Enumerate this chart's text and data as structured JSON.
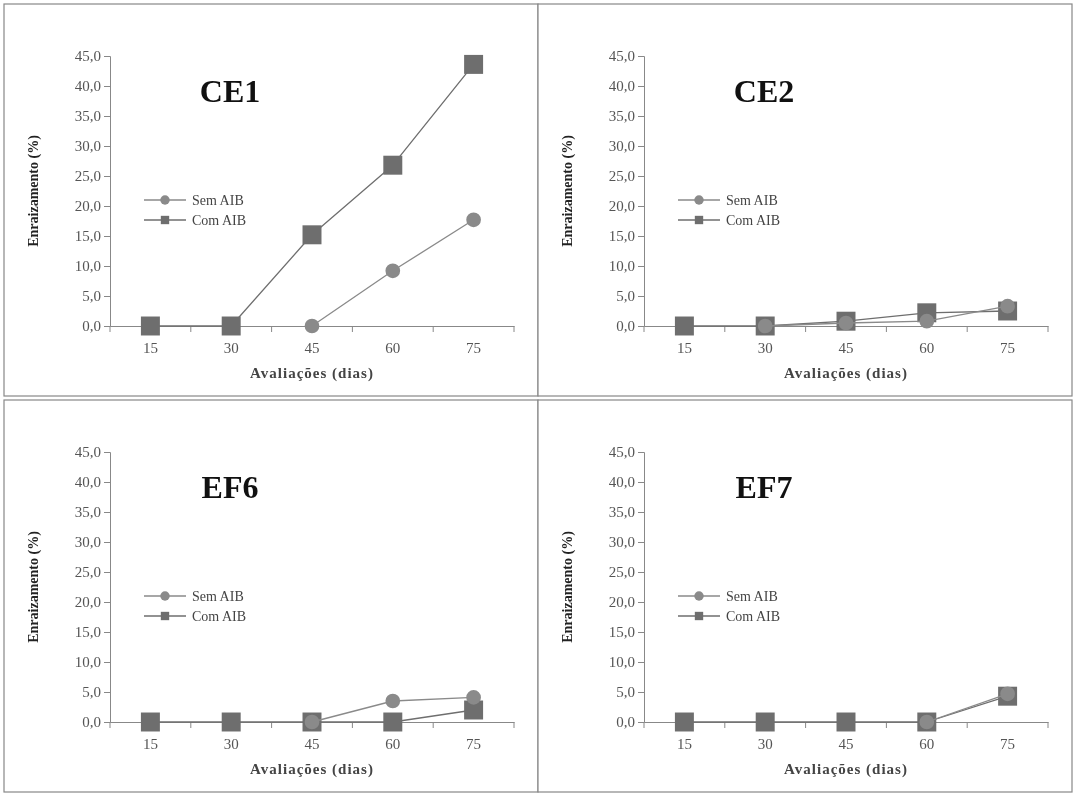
{
  "chart_data": [
    {
      "type": "line",
      "title": "CE1",
      "xlabel": "Avaliações (dias)",
      "ylabel": "Enraizamento (%)",
      "categories": [
        "15",
        "30",
        "45",
        "60",
        "75"
      ],
      "ylim": [
        0,
        45
      ],
      "yticks": [
        {
          "value": 0,
          "label": "0,0"
        },
        {
          "value": 5,
          "label": "5,0"
        },
        {
          "value": 10,
          "label": "10,0"
        },
        {
          "value": 15,
          "label": "15,0"
        },
        {
          "value": 20,
          "label": "20,0"
        },
        {
          "value": 25,
          "label": "25,0"
        },
        {
          "value": 30,
          "label": "30,0"
        },
        {
          "value": 35,
          "label": "35,0"
        },
        {
          "value": 40,
          "label": "40,0"
        },
        {
          "value": 45,
          "label": "45,0"
        }
      ],
      "legend": "left",
      "grid": false,
      "series": [
        {
          "name": "Sem AIB",
          "color": "#8a8a8a",
          "marker": "circle",
          "values": [
            null,
            null,
            0,
            9.2,
            17.7
          ]
        },
        {
          "name": "Com AIB",
          "color": "#6e6e6e",
          "marker": "square",
          "values": [
            0,
            0,
            15.2,
            26.8,
            43.6
          ]
        }
      ]
    },
    {
      "type": "line",
      "title": "CE2",
      "xlabel": "Avaliações (dias)",
      "ylabel": "Enraizamento (%)",
      "categories": [
        "15",
        "30",
        "45",
        "60",
        "75"
      ],
      "ylim": [
        0,
        45
      ],
      "yticks": [
        {
          "value": 0,
          "label": "0,0"
        },
        {
          "value": 5,
          "label": "5,0"
        },
        {
          "value": 10,
          "label": "10,0"
        },
        {
          "value": 15,
          "label": "15,0"
        },
        {
          "value": 20,
          "label": "20,0"
        },
        {
          "value": 25,
          "label": "25,0"
        },
        {
          "value": 30,
          "label": "30,0"
        },
        {
          "value": 35,
          "label": "35,0"
        },
        {
          "value": 40,
          "label": "40,0"
        },
        {
          "value": 45,
          "label": "45,0"
        }
      ],
      "legend": "left",
      "grid": false,
      "series": [
        {
          "name": "Sem AIB",
          "color": "#8a8a8a",
          "marker": "circle",
          "values": [
            null,
            0,
            0.5,
            0.8,
            3.3
          ]
        },
        {
          "name": "Com AIB",
          "color": "#6e6e6e",
          "marker": "square",
          "values": [
            0,
            0,
            0.8,
            2.2,
            2.5
          ]
        }
      ]
    },
    {
      "type": "line",
      "title": "EF6",
      "xlabel": "Avaliações (dias)",
      "ylabel": "Enraizamento (%)",
      "categories": [
        "15",
        "30",
        "45",
        "60",
        "75"
      ],
      "ylim": [
        0,
        45
      ],
      "yticks": [
        {
          "value": 0,
          "label": "0,0"
        },
        {
          "value": 5,
          "label": "5,0"
        },
        {
          "value": 10,
          "label": "10,0"
        },
        {
          "value": 15,
          "label": "15,0"
        },
        {
          "value": 20,
          "label": "20,0"
        },
        {
          "value": 25,
          "label": "25,0"
        },
        {
          "value": 30,
          "label": "30,0"
        },
        {
          "value": 35,
          "label": "35,0"
        },
        {
          "value": 40,
          "label": "40,0"
        },
        {
          "value": 45,
          "label": "45,0"
        }
      ],
      "legend": "left",
      "grid": false,
      "series": [
        {
          "name": "Sem AIB",
          "color": "#8a8a8a",
          "marker": "circle",
          "values": [
            null,
            null,
            0,
            3.5,
            4.1
          ]
        },
        {
          "name": "Com AIB",
          "color": "#6e6e6e",
          "marker": "square",
          "values": [
            0,
            0,
            0,
            0,
            2.0
          ]
        }
      ]
    },
    {
      "type": "line",
      "title": "EF7",
      "xlabel": "Avaliações (dias)",
      "ylabel": "Enraizamento (%)",
      "categories": [
        "15",
        "30",
        "45",
        "60",
        "75"
      ],
      "ylim": [
        0,
        45
      ],
      "yticks": [
        {
          "value": 0,
          "label": "0,0"
        },
        {
          "value": 5,
          "label": "5,0"
        },
        {
          "value": 10,
          "label": "10,0"
        },
        {
          "value": 15,
          "label": "15,0"
        },
        {
          "value": 20,
          "label": "20,0"
        },
        {
          "value": 25,
          "label": "25,0"
        },
        {
          "value": 30,
          "label": "30,0"
        },
        {
          "value": 35,
          "label": "35,0"
        },
        {
          "value": 40,
          "label": "40,0"
        },
        {
          "value": 45,
          "label": "45,0"
        }
      ],
      "legend": "left",
      "grid": false,
      "series": [
        {
          "name": "Sem AIB",
          "color": "#8a8a8a",
          "marker": "circle",
          "values": [
            null,
            null,
            null,
            0,
            4.7
          ]
        },
        {
          "name": "Com AIB",
          "color": "#6e6e6e",
          "marker": "square",
          "values": [
            0,
            0,
            0,
            0,
            4.3
          ]
        }
      ]
    }
  ]
}
